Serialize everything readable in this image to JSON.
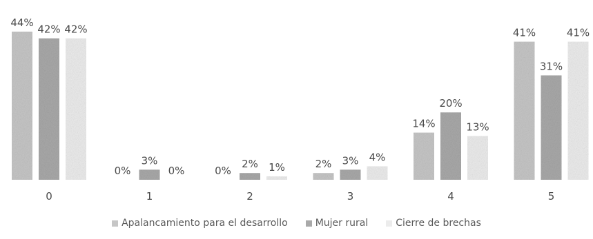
{
  "chart_data": {
    "type": "bar",
    "categories": [
      "0",
      "1",
      "2",
      "3",
      "4",
      "5"
    ],
    "series": [
      {
        "name": "Apalancamiento para el desarrollo",
        "values": [
          44,
          0,
          0,
          2,
          14,
          41
        ],
        "labels": [
          "44%",
          "0%",
          "0%",
          "2%",
          "14%",
          "41%"
        ],
        "color": "#c6c6c6"
      },
      {
        "name": "Mujer rural",
        "values": [
          42,
          3,
          2,
          3,
          20,
          31
        ],
        "labels": [
          "42%",
          "3%",
          "2%",
          "3%",
          "20%",
          "31%"
        ],
        "color": "#a9a9a9"
      },
      {
        "name": "Cierre de brechas",
        "values": [
          42,
          0,
          1,
          4,
          13,
          41
        ],
        "labels": [
          "42%",
          "0%",
          "1%",
          "4%",
          "13%",
          "41%"
        ],
        "color": "#ececec"
      }
    ],
    "ylim": [
      0,
      45
    ],
    "grid": false,
    "legend_position": "bottom"
  }
}
